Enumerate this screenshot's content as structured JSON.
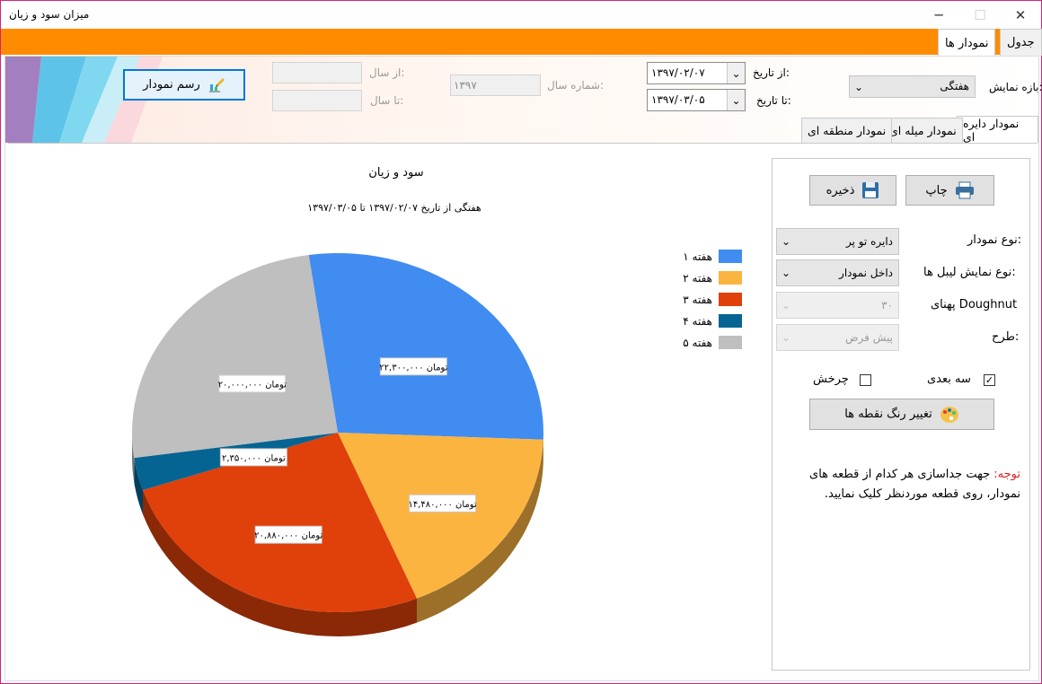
{
  "window": {
    "title": "میزان سود و زیان",
    "controls": {
      "minimize": "─",
      "maximize": "☐",
      "close": "✕"
    }
  },
  "main_tabs": [
    {
      "label": "جدول",
      "active": false
    },
    {
      "label": "نمودار ها",
      "active": true
    }
  ],
  "filters": {
    "period_label": "بازه نمایش:",
    "period_value": "هفتگی",
    "from_date_label": "از تاریخ:",
    "from_date_value": "۱۳۹۷/۰۲/۰۷",
    "to_date_label": "تا تاریخ:",
    "to_date_value": "۱۳۹۷/۰۳/۰۵",
    "year_number_label": "شماره سال:",
    "year_number_value": "۱۳۹۷",
    "from_year_label": "از سال:",
    "from_year_value": "",
    "to_year_label": "تا سال:",
    "to_year_value": "",
    "draw_button": "رسم نمودار"
  },
  "chart_tabs": [
    {
      "label": "نمودار دایره ای",
      "active": true
    },
    {
      "label": "نمودار میله ای",
      "active": false
    },
    {
      "label": "نمودار منطقه ای",
      "active": false
    }
  ],
  "settings": {
    "print_button": "چاپ",
    "save_button": "ذخیره",
    "chart_type_label": "نوع نمودار:",
    "chart_type_value": "دایره تو پر",
    "label_display_label": "نوع نمایش لیبل ها:",
    "label_display_value": "داخل نمودار",
    "doughnut_width_label": "پهنای Doughnut",
    "doughnut_width_value": "۳۰",
    "theme_label": "طرح:",
    "theme_value": "پیش فرض",
    "three_d_label": "سه بعدی",
    "three_d_checked": true,
    "rotate_label": "چرخش",
    "rotate_checked": false,
    "change_color_button": "تغییر رنگ نقطه ها",
    "note_title": "توجه:",
    "note_text": "جهت جداسازی هر کدام از قطعه های نمودار، روی قطعه موردنظر کلیک نمایید."
  },
  "chart_data": {
    "type": "pie",
    "title": "سود و زیان",
    "subtitle": "هفتگی از تاریخ ۱۳۹۷/۰۲/۰۷ تا ۱۳۹۷/۰۳/۰۵",
    "three_d": true,
    "legend_position": "right",
    "categories": [
      "هفته ۱",
      "هفته ۲",
      "هفته ۳",
      "هفته ۴",
      "هفته ۵"
    ],
    "values": [
      22300000,
      14480000,
      20880000,
      2350000,
      20000000
    ],
    "data_labels": [
      "۲۲,۳۰۰,۰۰۰ تومان",
      "۱۴,۴۸۰,۰۰۰ تومان",
      "۲۰,۸۸۰,۰۰۰ تومان",
      "۲,۳۵۰,۰۰۰ تومان",
      "۲۰,۰۰۰,۰۰۰ تومان"
    ],
    "colors": [
      "#418cf0",
      "#fcb441",
      "#e0400a",
      "#056492",
      "#bfbfbf"
    ]
  }
}
